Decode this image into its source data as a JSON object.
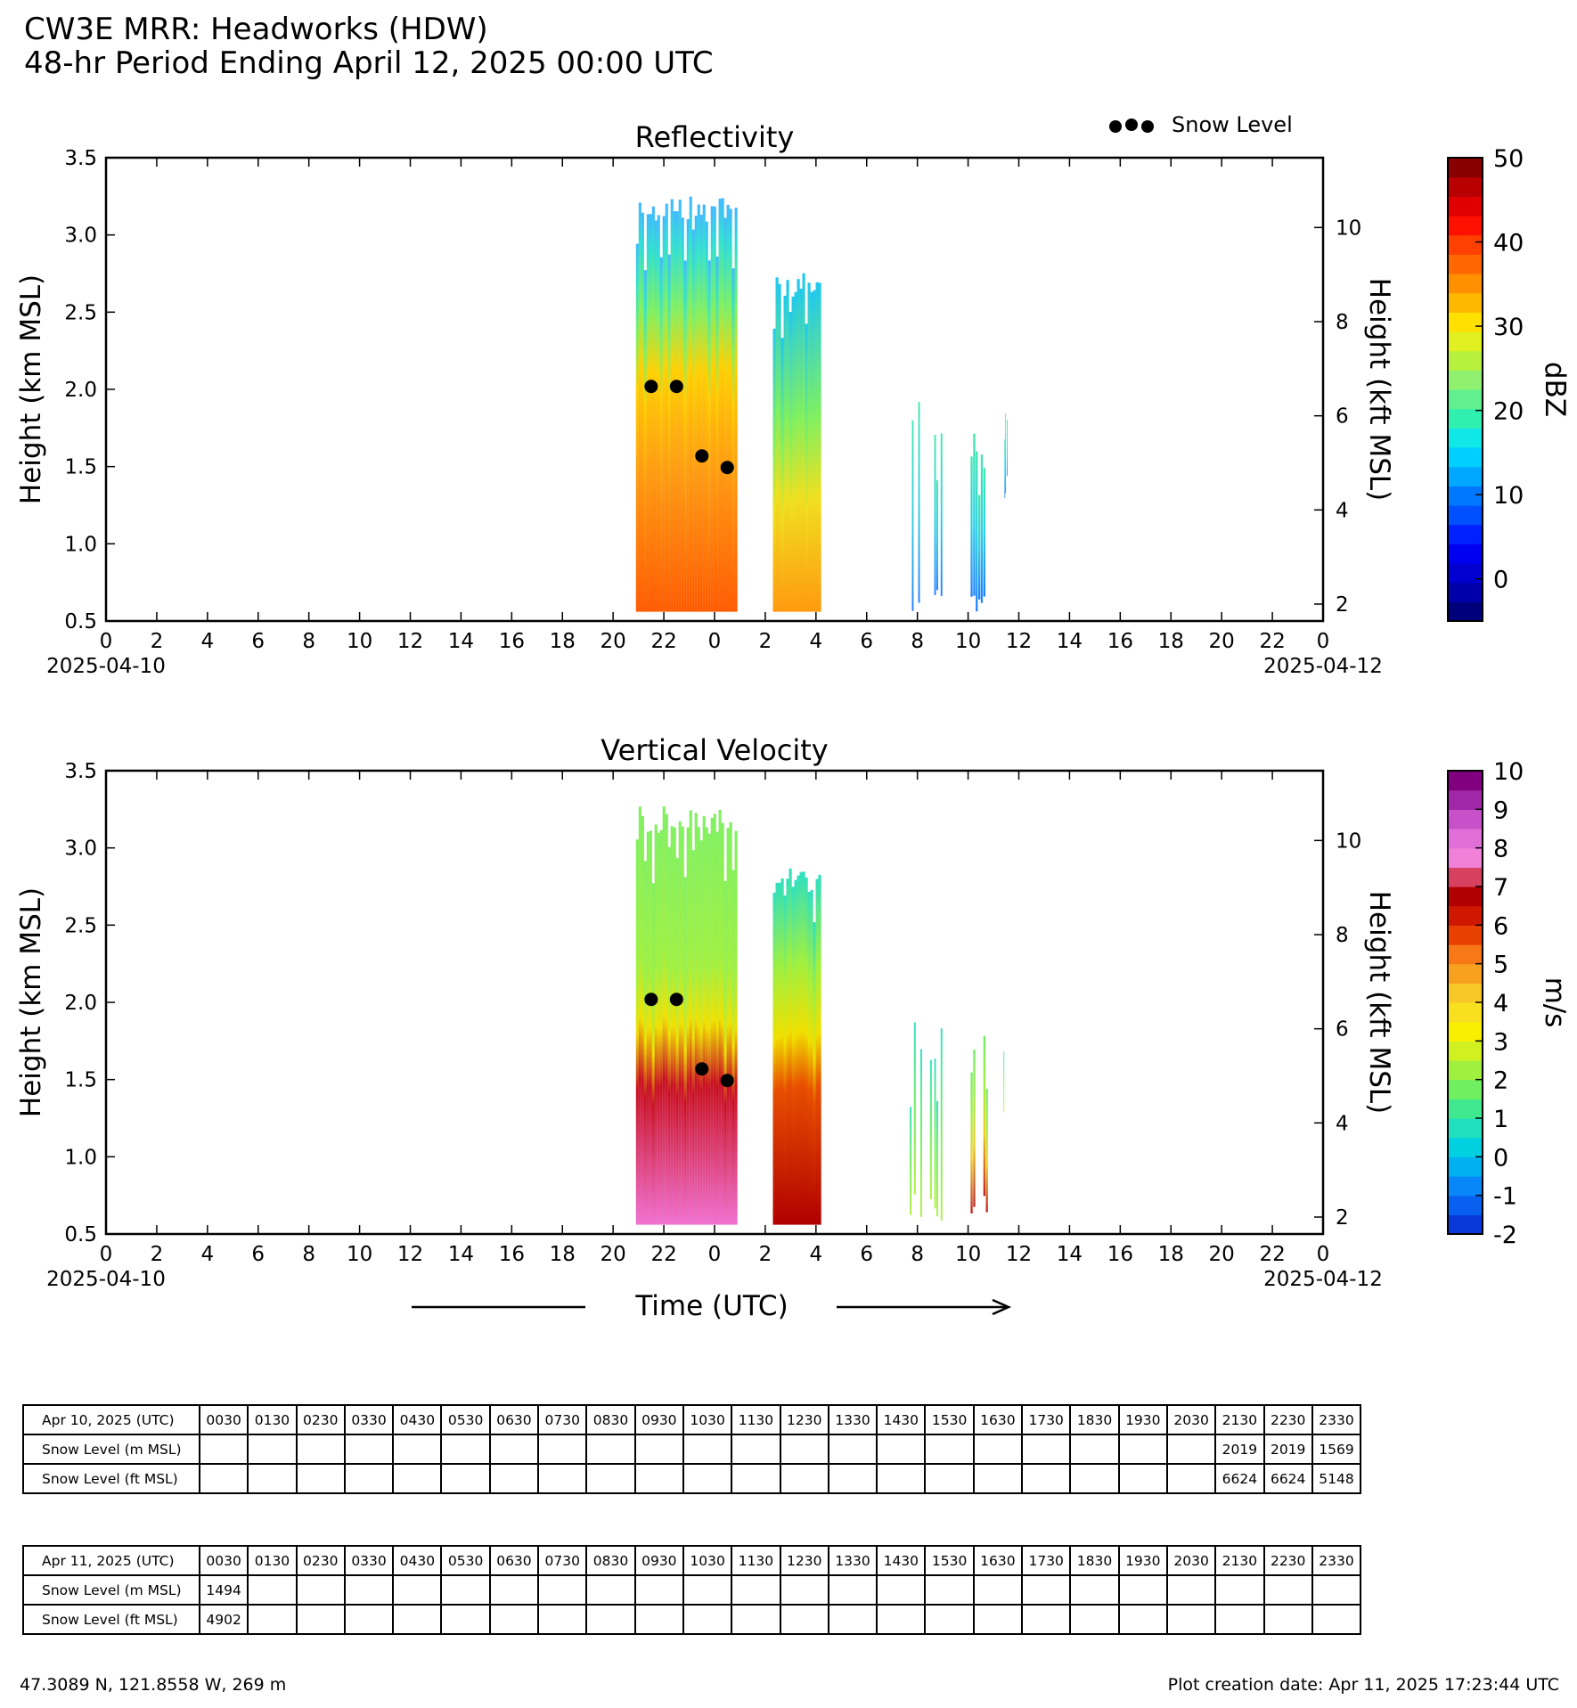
{
  "header": {
    "title_line1": "CW3E MRR: Headworks (HDW)",
    "title_line2": "48-hr Period Ending April 12, 2025 00:00 UTC"
  },
  "legend": {
    "label": "Snow Level"
  },
  "chart_data": [
    {
      "type": "heatmap",
      "title": "Reflectivity",
      "ylabel": "Height (km MSL)",
      "ylabel_right": "Height (kft MSL)",
      "xlabel": "",
      "xlim_hours": [
        0,
        48
      ],
      "ylim": [
        0.5,
        3.5
      ],
      "yticks": [
        "0.5",
        "1.0",
        "1.5",
        "2.0",
        "2.5",
        "3.0",
        "3.5"
      ],
      "yticks_right": [
        "2",
        "4",
        "6",
        "8",
        "10"
      ],
      "xticks": [
        "0",
        "2",
        "4",
        "6",
        "8",
        "10",
        "12",
        "14",
        "16",
        "18",
        "20",
        "22",
        "0",
        "2",
        "4",
        "6",
        "8",
        "10",
        "12",
        "14",
        "16",
        "18",
        "20",
        "22",
        "0"
      ],
      "date_start": "2025-04-10",
      "date_end": "2025-04-12",
      "colorbar": {
        "label": "dBZ",
        "min": -5,
        "max": 50,
        "ticks": [
          "0",
          "10",
          "20",
          "30",
          "40",
          "50"
        ],
        "colors": [
          "#00007a",
          "#0000a8",
          "#0000d0",
          "#0000f0",
          "#0020ff",
          "#0050ff",
          "#0078ff",
          "#00a8ff",
          "#00d0ff",
          "#10e8e8",
          "#30f0b0",
          "#60f090",
          "#90f070",
          "#b8f040",
          "#e0f020",
          "#ffe000",
          "#ffb800",
          "#ff9000",
          "#ff6800",
          "#ff4000",
          "#ff1000",
          "#e00000",
          "#b80000",
          "#8a0000"
        ]
      },
      "snow_level_km": [
        2.019,
        2.019,
        1.569,
        1.494
      ],
      "snow_level_times_hours": [
        21.5,
        22.5,
        23.5,
        24.5
      ],
      "echo_segments": [
        {
          "from": 20.9,
          "to": 24.9,
          "top": 3.27,
          "base": 0.56,
          "style": "deep-reflectivity"
        },
        {
          "from": 26.3,
          "to": 28.2,
          "top": 2.77,
          "base": 0.56,
          "style": "moderate"
        },
        {
          "from": 31.7,
          "to": 32.2,
          "top": 1.92,
          "base": 0.56,
          "style": "light"
        },
        {
          "from": 32.5,
          "to": 33.0,
          "top": 1.84,
          "base": 0.56,
          "style": "light"
        },
        {
          "from": 34.1,
          "to": 34.8,
          "top": 1.77,
          "base": 0.56,
          "style": "light"
        },
        {
          "from": 35.4,
          "to": 35.6,
          "top": 1.87,
          "base": 1.28,
          "style": "light"
        }
      ]
    },
    {
      "type": "heatmap",
      "title": "Vertical Velocity",
      "ylabel": "Height (km MSL)",
      "ylabel_right": "Height (kft MSL)",
      "xlabel": "Time (UTC)",
      "xlim_hours": [
        0,
        48
      ],
      "ylim": [
        0.5,
        3.5
      ],
      "yticks": [
        "0.5",
        "1.0",
        "1.5",
        "2.0",
        "2.5",
        "3.0",
        "3.5"
      ],
      "yticks_right": [
        "2",
        "4",
        "6",
        "8",
        "10"
      ],
      "xticks": [
        "0",
        "2",
        "4",
        "6",
        "8",
        "10",
        "12",
        "14",
        "16",
        "18",
        "20",
        "22",
        "0",
        "2",
        "4",
        "6",
        "8",
        "10",
        "12",
        "14",
        "16",
        "18",
        "20",
        "22",
        "0"
      ],
      "date_start": "2025-04-10",
      "date_end": "2025-04-12",
      "colorbar": {
        "label": "m/s",
        "min": -2,
        "max": 10,
        "ticks": [
          "-2",
          "-1",
          "0",
          "1",
          "2",
          "3",
          "4",
          "5",
          "6",
          "7",
          "8",
          "9",
          "10"
        ],
        "colors": [
          "#0838d8",
          "#0860f0",
          "#0888f8",
          "#00b0f0",
          "#00d0e0",
          "#20e0c0",
          "#40e890",
          "#70f060",
          "#a0f040",
          "#d0f020",
          "#f8f000",
          "#f8e020",
          "#f8c828",
          "#f8a020",
          "#f87818",
          "#e84000",
          "#d01800",
          "#b00000",
          "#d84060",
          "#f080d8",
          "#e070d8",
          "#c850c8",
          "#a028a8",
          "#800080"
        ]
      },
      "snow_level_km": [
        2.019,
        2.019,
        1.569,
        1.494
      ],
      "snow_level_times_hours": [
        21.5,
        22.5,
        23.5,
        24.5
      ],
      "echo_segments": [
        {
          "from": 20.9,
          "to": 24.9,
          "top": 3.27,
          "base": 0.56,
          "style": "strong-fall"
        },
        {
          "from": 26.3,
          "to": 28.2,
          "top": 2.87,
          "base": 0.56,
          "style": "moderate-fall"
        },
        {
          "from": 31.7,
          "to": 32.2,
          "top": 1.97,
          "base": 0.56,
          "style": "light-fall"
        },
        {
          "from": 32.5,
          "to": 33.0,
          "top": 1.84,
          "base": 0.56,
          "style": "light-fall"
        },
        {
          "from": 34.1,
          "to": 34.8,
          "top": 1.87,
          "base": 0.56,
          "style": "mixed"
        },
        {
          "from": 35.4,
          "to": 35.6,
          "top": 1.87,
          "base": 1.28,
          "style": "light-fall"
        }
      ]
    }
  ],
  "time_axis": {
    "label": "Time (UTC)"
  },
  "tables": [
    {
      "header": "Apr 10, 2025 (UTC)",
      "times": [
        "0030",
        "0130",
        "0230",
        "0330",
        "0430",
        "0530",
        "0630",
        "0730",
        "0830",
        "0930",
        "1030",
        "1130",
        "1230",
        "1330",
        "1430",
        "1530",
        "1630",
        "1730",
        "1830",
        "1930",
        "2030",
        "2130",
        "2230",
        "2330"
      ],
      "rows": [
        {
          "label": "Snow Level (m MSL)",
          "values": [
            "",
            "",
            "",
            "",
            "",
            "",
            "",
            "",
            "",
            "",
            "",
            "",
            "",
            "",
            "",
            "",
            "",
            "",
            "",
            "",
            "",
            "2019",
            "2019",
            "1569"
          ]
        },
        {
          "label": "Snow Level (ft MSL)",
          "values": [
            "",
            "",
            "",
            "",
            "",
            "",
            "",
            "",
            "",
            "",
            "",
            "",
            "",
            "",
            "",
            "",
            "",
            "",
            "",
            "",
            "",
            "6624",
            "6624",
            "5148"
          ]
        }
      ]
    },
    {
      "header": "Apr 11, 2025 (UTC)",
      "times": [
        "0030",
        "0130",
        "0230",
        "0330",
        "0430",
        "0530",
        "0630",
        "0730",
        "0830",
        "0930",
        "1030",
        "1130",
        "1230",
        "1330",
        "1430",
        "1530",
        "1630",
        "1730",
        "1830",
        "1930",
        "2030",
        "2130",
        "2230",
        "2330"
      ],
      "rows": [
        {
          "label": "Snow Level (m MSL)",
          "values": [
            "1494",
            "",
            "",
            "",
            "",
            "",
            "",
            "",
            "",
            "",
            "",
            "",
            "",
            "",
            "",
            "",
            "",
            "",
            "",
            "",
            "",
            "",
            "",
            ""
          ]
        },
        {
          "label": "Snow Level (ft MSL)",
          "values": [
            "4902",
            "",
            "",
            "",
            "",
            "",
            "",
            "",
            "",
            "",
            "",
            "",
            "",
            "",
            "",
            "",
            "",
            "",
            "",
            "",
            "",
            "",
            "",
            ""
          ]
        }
      ]
    }
  ],
  "footer": {
    "location": "47.3089 N, 121.8558 W, 269 m",
    "creation": "Plot creation date: Apr 11, 2025 17:23:44 UTC"
  }
}
